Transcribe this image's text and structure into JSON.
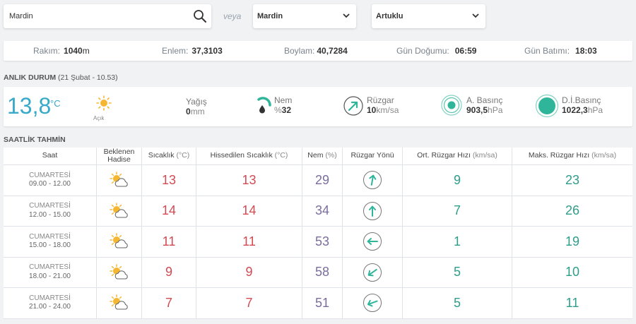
{
  "search": {
    "value": "Mardin"
  },
  "veya": "veya",
  "select_il": "Mardin",
  "select_ilce": "Artuklu",
  "info": {
    "rakim_label": "Rakım:",
    "rakim_value": "1040",
    "rakim_unit": "m",
    "enlem_label": "Enlem:",
    "enlem_value": "37,3103",
    "boylam_label": "Boylam:",
    "boylam_value": "40,7284",
    "gundogumu_label": "Gün Doğumu:",
    "gundogumu_value": "06:59",
    "gunbatimi_label": "Gün Batımı:",
    "gunbatimi_value": "18:03"
  },
  "current": {
    "title": "ANLIK DURUM",
    "date": "(21 Şubat - 10.53)",
    "temperature": "13,8",
    "temp_unit": "°C",
    "condition": "Açık",
    "precip_label": "Yağış",
    "precip_value": "0",
    "precip_unit": "mm",
    "humidity_label": "Nem",
    "humidity_prefix": "%",
    "humidity_value": "32",
    "wind_label": "Rüzgar",
    "wind_value": "10",
    "wind_unit": "km/sa",
    "pressure_label": "A. Basınç",
    "pressure_value": "903,5",
    "pressure_unit": "hPa",
    "sea_pressure_label": "D.İ.Basınç",
    "sea_pressure_value": "1022,3",
    "sea_pressure_unit": "hPa"
  },
  "hourly": {
    "title": "SAATLİK TAHMİN",
    "headers": {
      "saat": "Saat",
      "hadise_1": "Beklenen",
      "hadise_2": "Hadise",
      "sicaklik": "Sıcaklık",
      "sicaklik_unit": "(°C)",
      "hissedilen": "Hissedilen Sıcaklık",
      "hissedilen_unit": "(°C)",
      "nem": "Nem",
      "nem_unit": "(%)",
      "yon": "Rüzgar Yönü",
      "ort": "Ort. Rüzgar Hızı",
      "ort_unit": "(km/sa)",
      "maks": "Maks. Rüzgar Hızı",
      "maks_unit": "(km/sa)"
    },
    "rows": [
      {
        "day": "CUMARTESİ",
        "time": "09.00 - 12.00",
        "temp": "13",
        "feels": "13",
        "humidity": "29",
        "wind_dir_deg": 10,
        "avg": "9",
        "max": "23"
      },
      {
        "day": "CUMARTESİ",
        "time": "12.00 - 15.00",
        "temp": "14",
        "feels": "14",
        "humidity": "34",
        "wind_dir_deg": 0,
        "avg": "7",
        "max": "26"
      },
      {
        "day": "CUMARTESİ",
        "time": "15.00 - 18.00",
        "temp": "11",
        "feels": "11",
        "humidity": "53",
        "wind_dir_deg": 270,
        "avg": "1",
        "max": "19"
      },
      {
        "day": "CUMARTESİ",
        "time": "18.00 - 21.00",
        "temp": "9",
        "feels": "9",
        "humidity": "58",
        "wind_dir_deg": 235,
        "avg": "5",
        "max": "10"
      },
      {
        "day": "CUMARTESİ",
        "time": "21.00 - 24.00",
        "temp": "7",
        "feels": "7",
        "humidity": "51",
        "wind_dir_deg": 250,
        "avg": "5",
        "max": "11"
      }
    ]
  },
  "colors": {
    "accent": "#38a9c8",
    "temp": "#d24a52",
    "humidity": "#7b6d9e",
    "wind": "#2c9e8a",
    "teal_icon": "#2fb59a"
  }
}
